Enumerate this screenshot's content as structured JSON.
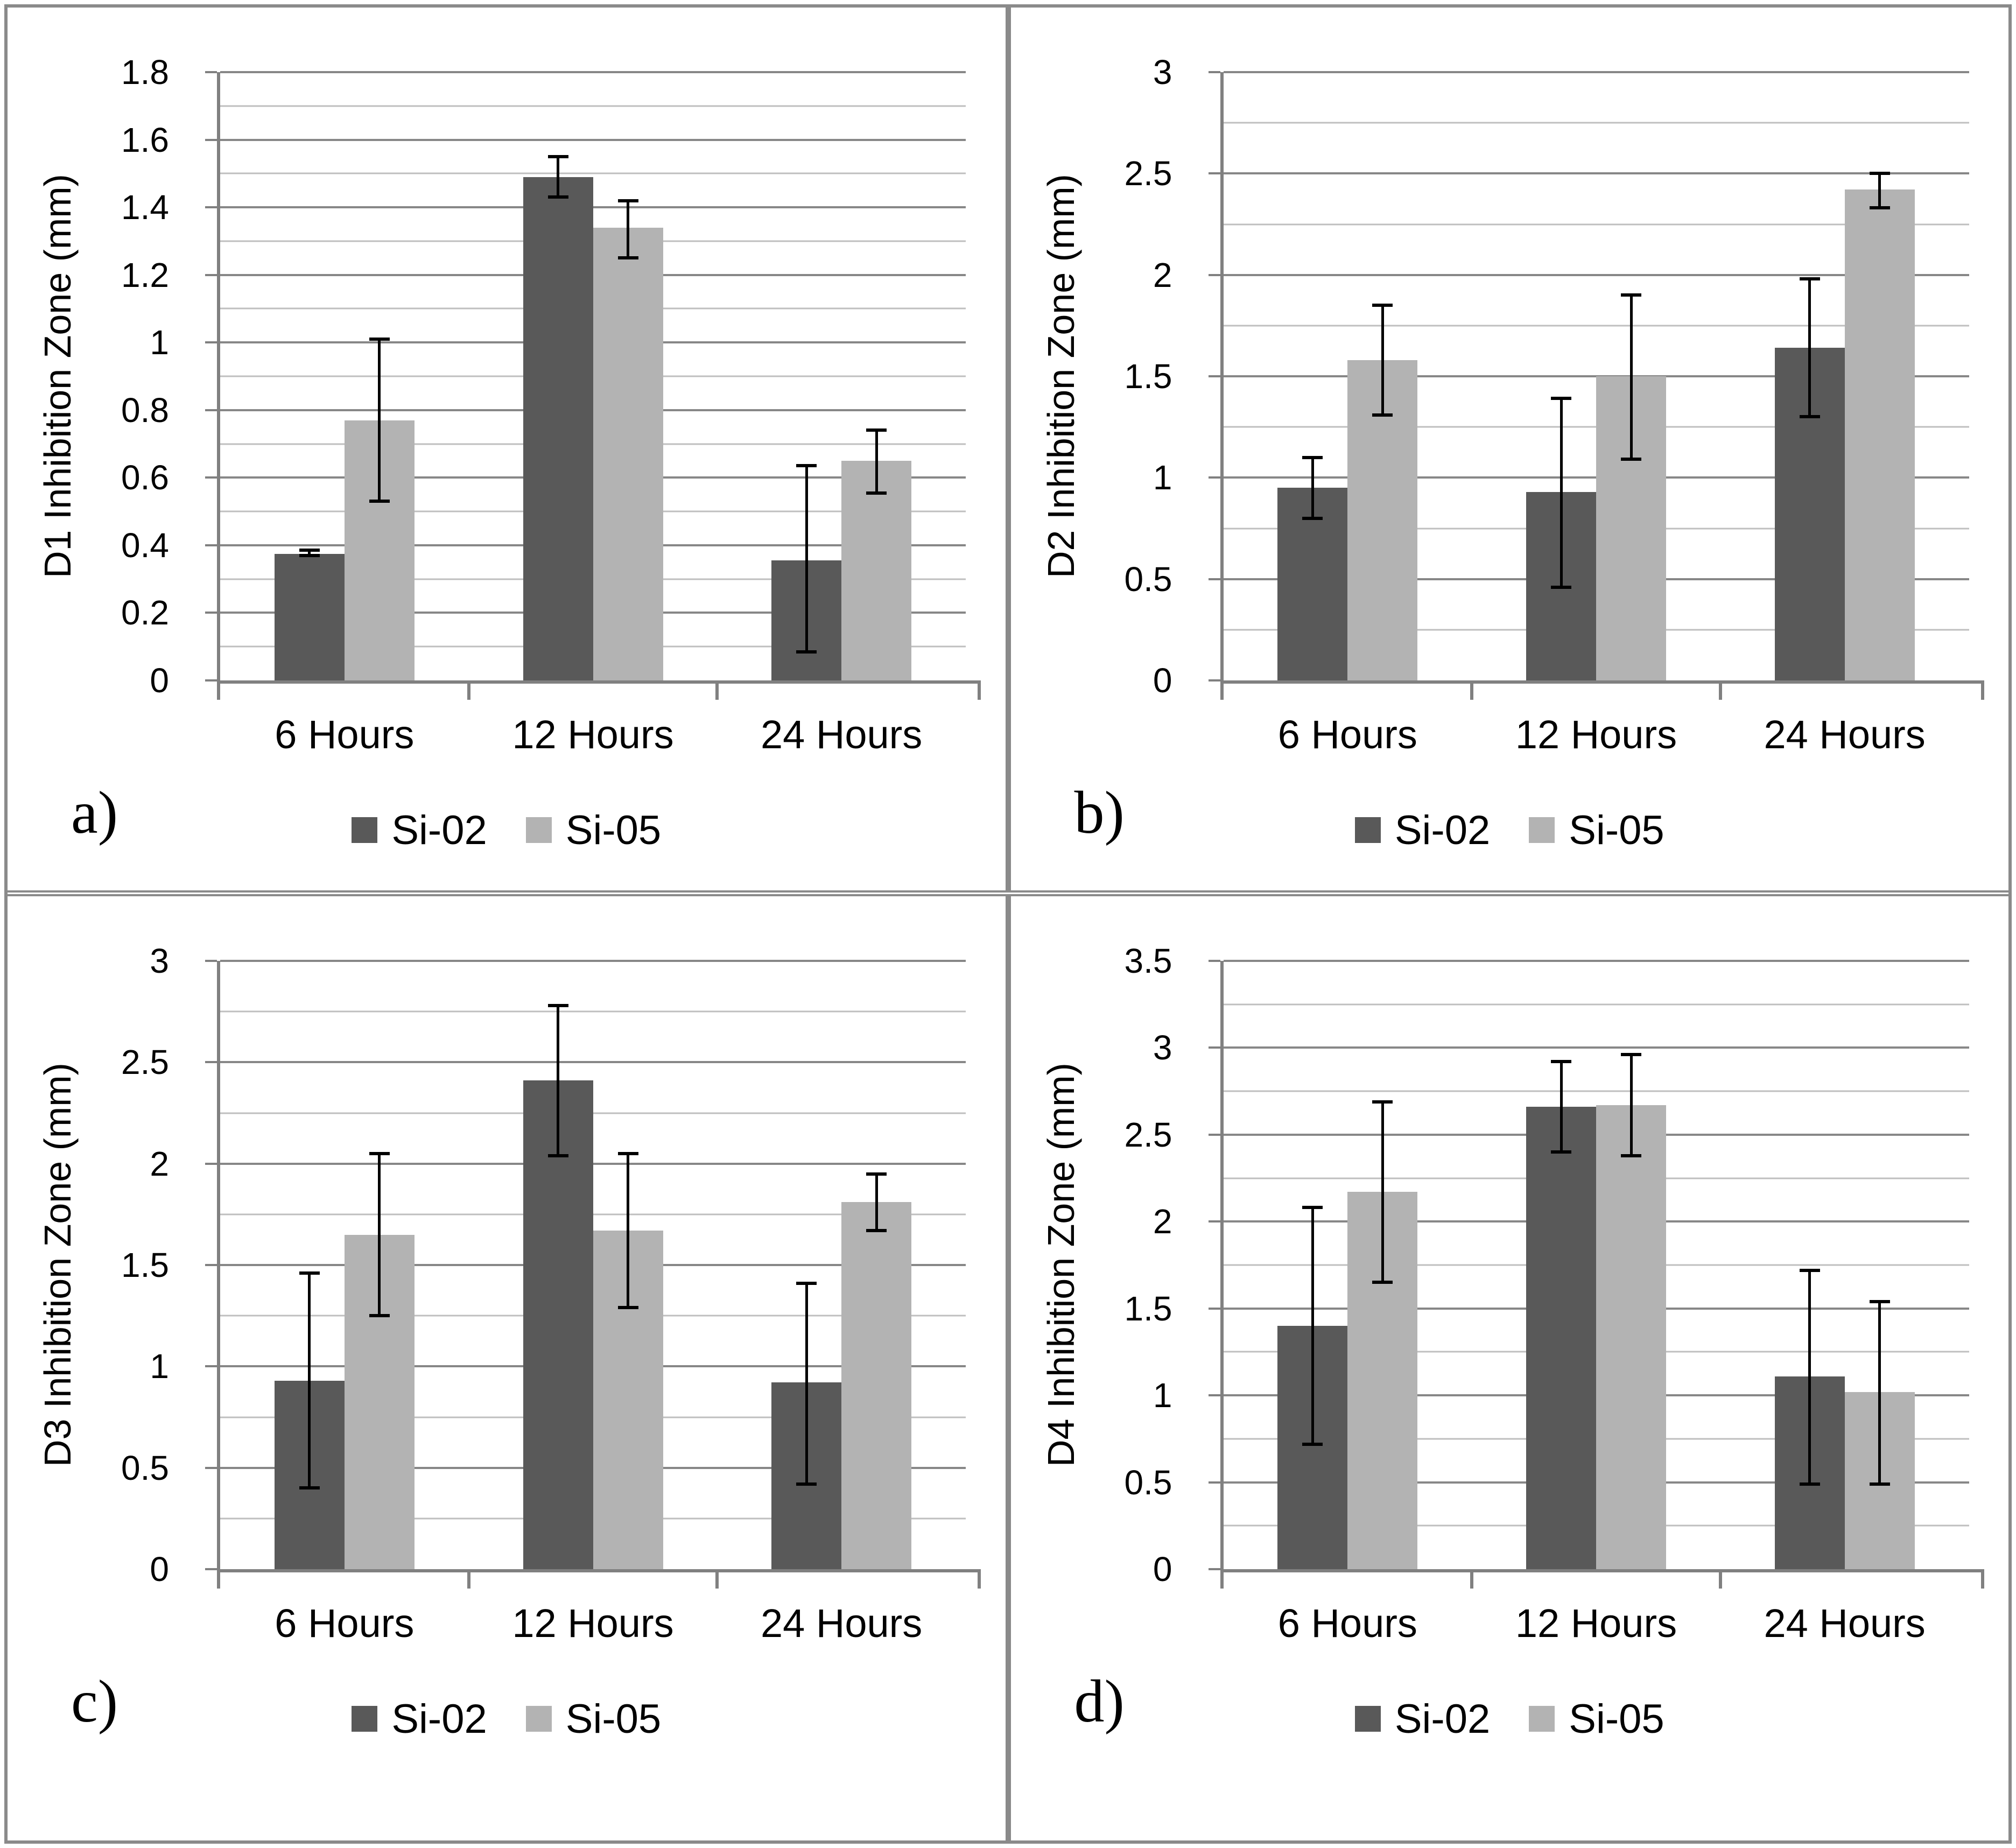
{
  "figure": {
    "background": "#ffffff",
    "border_color": "#8a8a8a",
    "axis_color": "#808080",
    "grid_major_color": "#878787",
    "grid_minor_color": "#bfbfbf",
    "error_bar_color": "#000000",
    "series_colors": {
      "Si-02": "#595959",
      "Si-05": "#b3b3b3"
    },
    "panel_letters": [
      "a)",
      "b)",
      "c)",
      "d)"
    ]
  },
  "chart_data": [
    {
      "type": "bar",
      "panel": "a)",
      "title": "",
      "xlabel": "",
      "ylabel": "D1 Inhibition Zone (mm)",
      "categories": [
        "6 Hours",
        "12 Hours",
        "24 Hours"
      ],
      "ylim": [
        0,
        1.8
      ],
      "ytick_major": 0.2,
      "ytick_minor": 0.1,
      "grid": true,
      "legend_position": "bottom",
      "series": [
        {
          "name": "Si-02",
          "values": [
            0.375,
            1.49,
            0.355
          ],
          "error_low": [
            0.37,
            1.43,
            0.085
          ],
          "error_high": [
            0.385,
            1.55,
            0.635
          ]
        },
        {
          "name": "Si-05",
          "values": [
            0.77,
            1.34,
            0.65
          ],
          "error_low": [
            0.53,
            1.25,
            0.555
          ],
          "error_high": [
            1.01,
            1.42,
            0.74
          ]
        }
      ]
    },
    {
      "type": "bar",
      "panel": "b)",
      "title": "",
      "xlabel": "",
      "ylabel": "D2 Inhibition Zone (mm)",
      "categories": [
        "6 Hours",
        "12 Hours",
        "24 Hours"
      ],
      "ylim": [
        0,
        3
      ],
      "ytick_major": 0.5,
      "ytick_minor": 0.25,
      "grid": true,
      "legend_position": "bottom",
      "series": [
        {
          "name": "Si-02",
          "values": [
            0.95,
            0.93,
            1.64
          ],
          "error_low": [
            0.8,
            0.46,
            1.3
          ],
          "error_high": [
            1.1,
            1.39,
            1.98
          ]
        },
        {
          "name": "Si-05",
          "values": [
            1.58,
            1.5,
            2.42
          ],
          "error_low": [
            1.31,
            1.09,
            2.33
          ],
          "error_high": [
            1.85,
            1.9,
            2.5
          ]
        }
      ]
    },
    {
      "type": "bar",
      "panel": "c)",
      "title": "",
      "xlabel": "",
      "ylabel": "D3 Inhibition Zone (mm)",
      "categories": [
        "6 Hours",
        "12 Hours",
        "24 Hours"
      ],
      "ylim": [
        0,
        3
      ],
      "ytick_major": 0.5,
      "ytick_minor": 0.25,
      "grid": true,
      "legend_position": "bottom",
      "series": [
        {
          "name": "Si-02",
          "values": [
            0.93,
            2.41,
            0.92
          ],
          "error_low": [
            0.4,
            2.04,
            0.42
          ],
          "error_high": [
            1.46,
            2.78,
            1.41
          ]
        },
        {
          "name": "Si-05",
          "values": [
            1.65,
            1.67,
            1.81
          ],
          "error_low": [
            1.25,
            1.29,
            1.67
          ],
          "error_high": [
            2.05,
            2.05,
            1.95
          ]
        }
      ]
    },
    {
      "type": "bar",
      "panel": "d)",
      "title": "",
      "xlabel": "",
      "ylabel": "D4 Inhibition Zone (mm)",
      "categories": [
        "6 Hours",
        "12 Hours",
        "24 Hours"
      ],
      "ylim": [
        0,
        3.5
      ],
      "ytick_major": 0.5,
      "ytick_minor": 0.25,
      "grid": true,
      "legend_position": "bottom",
      "series": [
        {
          "name": "Si-02",
          "values": [
            1.4,
            2.66,
            1.11
          ],
          "error_low": [
            0.72,
            2.4,
            0.49
          ],
          "error_high": [
            2.08,
            2.92,
            1.72
          ]
        },
        {
          "name": "Si-05",
          "values": [
            2.17,
            2.67,
            1.02
          ],
          "error_low": [
            1.65,
            2.38,
            0.49
          ],
          "error_high": [
            2.69,
            2.96,
            1.54
          ]
        }
      ]
    }
  ]
}
